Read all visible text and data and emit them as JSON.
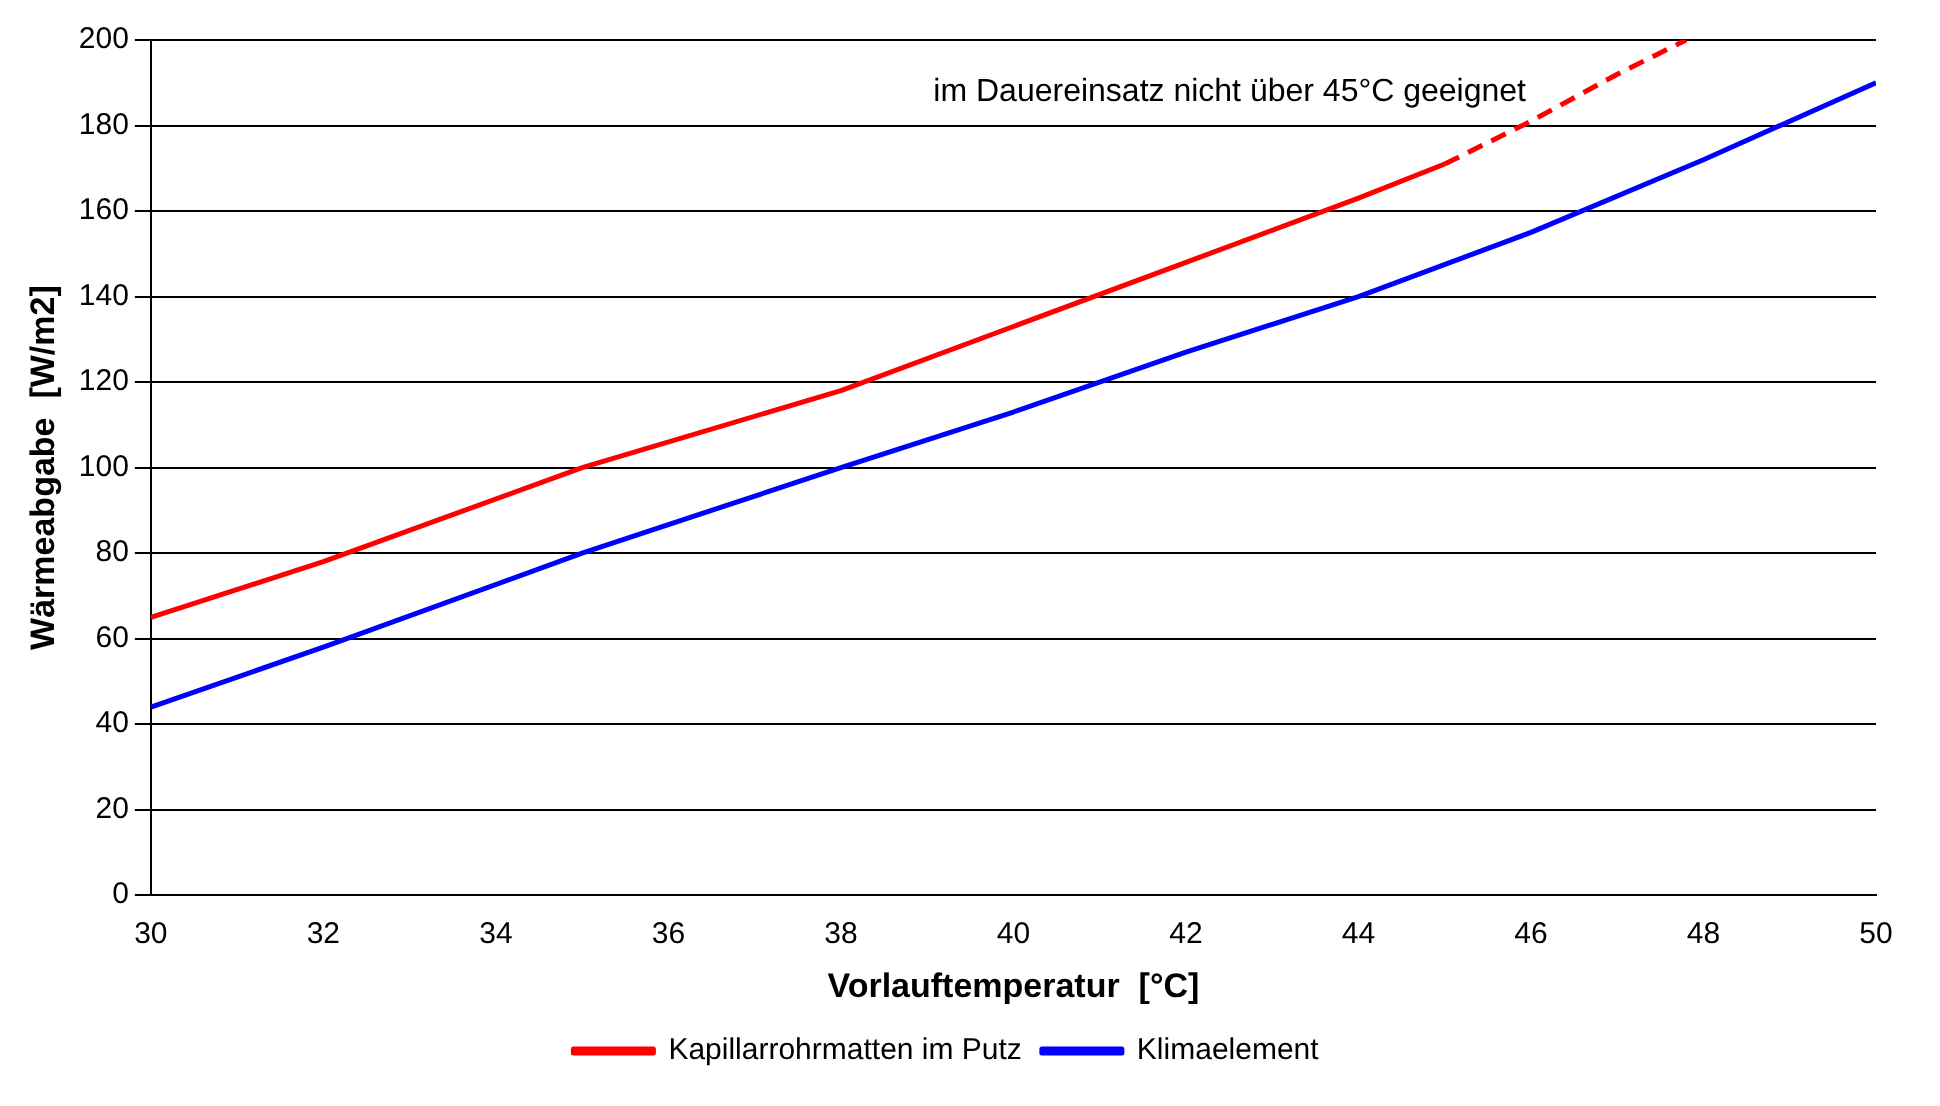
{
  "chart_data": {
    "type": "line",
    "xlabel": "Vorlauftemperatur  [°C]",
    "ylabel": "Wärmeabgabe  [W/m2]",
    "xlim": [
      30,
      50
    ],
    "xticks": [
      30,
      32,
      34,
      36,
      38,
      40,
      42,
      44,
      46,
      48,
      50
    ],
    "ylim": [
      0,
      200
    ],
    "yticks": [
      0,
      20,
      40,
      60,
      80,
      100,
      120,
      140,
      160,
      180,
      200
    ],
    "grid": "y",
    "legend": "bottom",
    "marker": "none",
    "annotations": [
      "im Dauereinsatz nicht über 45°C geeignet"
    ],
    "series": [
      {
        "name": "Kapillarrohrmatten im Putz",
        "color": "#ff0000",
        "line_style": "solid",
        "x": [
          30,
          32,
          35,
          38,
          40,
          42,
          44,
          45
        ],
        "values": [
          65,
          78,
          100,
          118,
          133,
          148,
          163,
          171
        ]
      },
      {
        "color": "#ff0000",
        "line_style": "dashed",
        "x": [
          45,
          46,
          47,
          47.8
        ],
        "values": [
          171,
          181,
          192,
          200
        ]
      },
      {
        "name": "Klimaelement",
        "color": "#0000ff",
        "line_style": "solid",
        "x": [
          30,
          32,
          35,
          38,
          40,
          42,
          44,
          46,
          48,
          50
        ],
        "values": [
          44,
          58,
          80,
          100,
          113,
          127,
          140,
          155,
          172,
          190
        ]
      }
    ]
  }
}
